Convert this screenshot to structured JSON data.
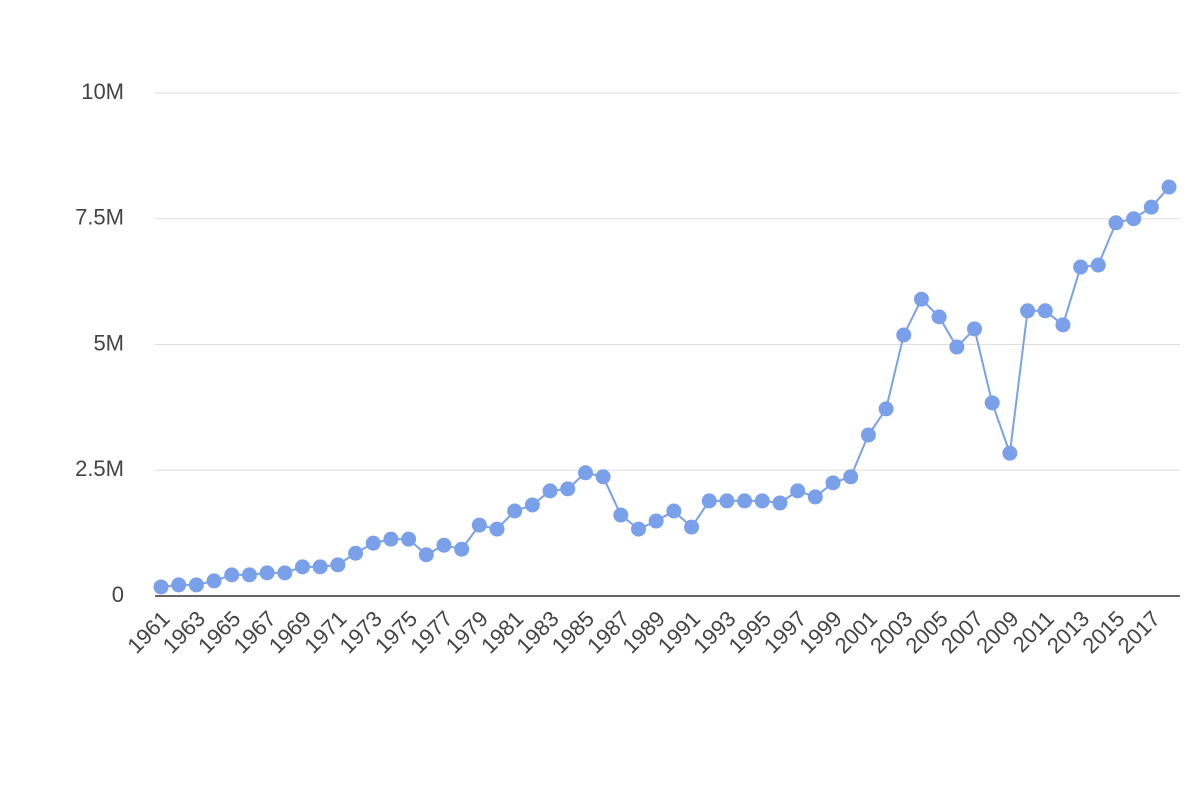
{
  "chart_data": {
    "type": "line",
    "x": [
      1961,
      1962,
      1963,
      1964,
      1965,
      1966,
      1967,
      1968,
      1969,
      1970,
      1971,
      1972,
      1973,
      1974,
      1975,
      1976,
      1977,
      1978,
      1979,
      1980,
      1981,
      1982,
      1983,
      1984,
      1985,
      1986,
      1987,
      1988,
      1989,
      1990,
      1991,
      1992,
      1993,
      1994,
      1995,
      1996,
      1997,
      1998,
      1999,
      2000,
      2001,
      2002,
      2003,
      2004,
      2005,
      2006,
      2007,
      2008,
      2009,
      2010,
      2011,
      2012,
      2013,
      2014,
      2015,
      2016,
      2017,
      2018
    ],
    "values": [
      180000,
      220000,
      220000,
      300000,
      420000,
      420000,
      460000,
      460000,
      580000,
      580000,
      620000,
      850000,
      1050000,
      1130000,
      1130000,
      820000,
      1010000,
      930000,
      1410000,
      1330000,
      1690000,
      1810000,
      2090000,
      2130000,
      2450000,
      2370000,
      1610000,
      1330000,
      1490000,
      1690000,
      1370000,
      1890000,
      1890000,
      1890000,
      1890000,
      1850000,
      2090000,
      1970000,
      2250000,
      2370000,
      3200000,
      3720000,
      5190000,
      5900000,
      5550000,
      4950000,
      5310000,
      3840000,
      2840000,
      5670000,
      5670000,
      5390000,
      6540000,
      6580000,
      7420000,
      7500000,
      7730000,
      8130000
    ],
    "color": "#7ba0ea",
    "xlim": [
      1960.66,
      2018.62
    ],
    "xticks": [
      1961,
      1963,
      1965,
      1967,
      1969,
      1971,
      1973,
      1975,
      1977,
      1979,
      1981,
      1983,
      1985,
      1987,
      1989,
      1991,
      1993,
      1995,
      1997,
      1999,
      2001,
      2003,
      2005,
      2007,
      2009,
      2011,
      2013,
      2015,
      2017
    ],
    "ylim": [
      0,
      10000000
    ],
    "yticks": [
      0,
      {
        "value": 2500000,
        "label": "2.5M"
      },
      {
        "value": 5000000,
        "label": "5M"
      },
      {
        "value": 7500000,
        "label": "7.5M"
      },
      {
        "value": 10000000,
        "label": "10M"
      }
    ],
    "grid": true
  }
}
